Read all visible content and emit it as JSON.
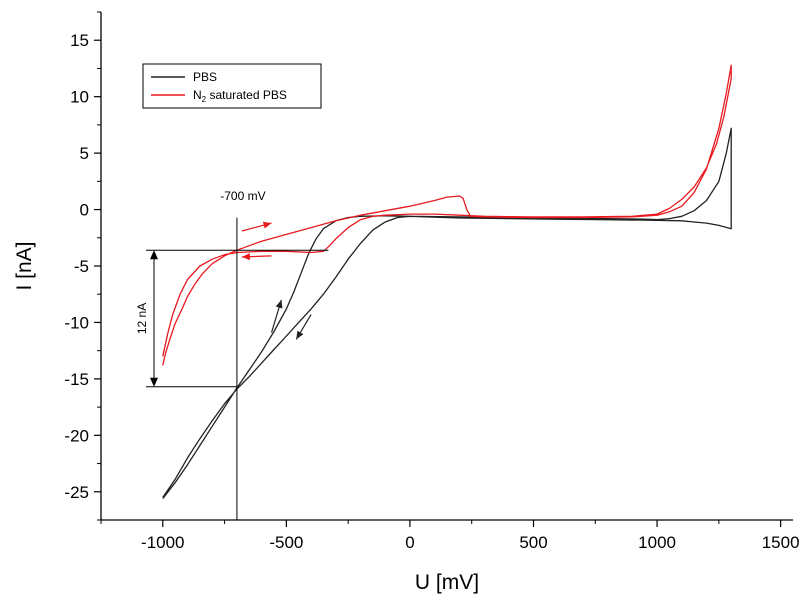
{
  "chart_data": {
    "type": "line",
    "xlabel": "U [mV]",
    "ylabel": "I [nA]",
    "xlim": [
      -1250,
      1550
    ],
    "ylim": [
      -27.5,
      17.5
    ],
    "x_ticks": [
      -1000,
      -500,
      0,
      500,
      1000,
      1500
    ],
    "x_tick_labels": [
      "-1000",
      "-500",
      "0",
      "500",
      "1000",
      "1500"
    ],
    "y_ticks": [
      -25,
      -20,
      -15,
      -10,
      -5,
      0,
      5,
      10,
      15
    ],
    "y_tick_labels": [
      "-25",
      "-20",
      "-15",
      "-10",
      "-5",
      "0",
      "5",
      "10",
      "15"
    ],
    "grid": false,
    "legend": {
      "placement": "top-left",
      "entries": [
        {
          "label": "PBS",
          "color": "#222222"
        },
        {
          "label_main": "N",
          "label_sub": "2",
          "label_rest": " saturated PBS",
          "color": "#e8191f"
        }
      ]
    },
    "series": [
      {
        "name": "PBS",
        "color": "#222222",
        "points": [
          [
            -1000,
            -25.6
          ],
          [
            -950,
            -24.2
          ],
          [
            -900,
            -22.6
          ],
          [
            -850,
            -20.9
          ],
          [
            -800,
            -19.2
          ],
          [
            -750,
            -17.5
          ],
          [
            -700,
            -15.8
          ],
          [
            -650,
            -14.2
          ],
          [
            -600,
            -12.6
          ],
          [
            -550,
            -10.8
          ],
          [
            -500,
            -8.8
          ],
          [
            -470,
            -7.3
          ],
          [
            -440,
            -5.6
          ],
          [
            -410,
            -3.9
          ],
          [
            -380,
            -2.6
          ],
          [
            -350,
            -1.7
          ],
          [
            -300,
            -1.0
          ],
          [
            -250,
            -0.7
          ],
          [
            -200,
            -0.6
          ],
          [
            -100,
            -0.55
          ],
          [
            0,
            -0.6
          ],
          [
            200,
            -0.65
          ],
          [
            400,
            -0.7
          ],
          [
            600,
            -0.75
          ],
          [
            800,
            -0.8
          ],
          [
            950,
            -0.85
          ],
          [
            1000,
            -0.9
          ],
          [
            1050,
            -0.8
          ],
          [
            1100,
            -0.6
          ],
          [
            1150,
            -0.1
          ],
          [
            1200,
            0.8
          ],
          [
            1250,
            2.5
          ],
          [
            1280,
            5.0
          ],
          [
            1300,
            7.2
          ],
          [
            1300,
            -1.7
          ],
          [
            1250,
            -1.4
          ],
          [
            1200,
            -1.2
          ],
          [
            1150,
            -1.1
          ],
          [
            1100,
            -1.0
          ],
          [
            1000,
            -0.95
          ],
          [
            800,
            -0.9
          ],
          [
            600,
            -0.85
          ],
          [
            400,
            -0.8
          ],
          [
            200,
            -0.75
          ],
          [
            0,
            -0.6
          ],
          [
            -50,
            -0.7
          ],
          [
            -100,
            -1.1
          ],
          [
            -150,
            -1.8
          ],
          [
            -200,
            -3.0
          ],
          [
            -250,
            -4.4
          ],
          [
            -300,
            -6.0
          ],
          [
            -350,
            -7.5
          ],
          [
            -400,
            -8.8
          ],
          [
            -450,
            -10.0
          ],
          [
            -500,
            -11.2
          ],
          [
            -550,
            -12.4
          ],
          [
            -600,
            -13.6
          ],
          [
            -650,
            -14.8
          ],
          [
            -700,
            -15.9
          ],
          [
            -750,
            -17.2
          ],
          [
            -800,
            -18.7
          ],
          [
            -850,
            -20.3
          ],
          [
            -900,
            -22.0
          ],
          [
            -950,
            -23.9
          ],
          [
            -1000,
            -25.5
          ]
        ]
      },
      {
        "name": "N₂ saturated PBS",
        "color": "#e8191f",
        "points": [
          [
            -1000,
            -13.8
          ],
          [
            -990,
            -12.8
          ],
          [
            -970,
            -11.4
          ],
          [
            -950,
            -10.1
          ],
          [
            -920,
            -8.7
          ],
          [
            -900,
            -7.7
          ],
          [
            -870,
            -6.6
          ],
          [
            -840,
            -5.7
          ],
          [
            -800,
            -4.8
          ],
          [
            -750,
            -4.1
          ],
          [
            -700,
            -3.6
          ],
          [
            -650,
            -3.2
          ],
          [
            -600,
            -2.8
          ],
          [
            -500,
            -2.2
          ],
          [
            -400,
            -1.6
          ],
          [
            -300,
            -1.0
          ],
          [
            -200,
            -0.5
          ],
          [
            -100,
            -0.1
          ],
          [
            0,
            0.3
          ],
          [
            100,
            0.8
          ],
          [
            150,
            1.1
          ],
          [
            200,
            1.2
          ],
          [
            215,
            1.0
          ],
          [
            230,
            0.0
          ],
          [
            245,
            -0.6
          ],
          [
            300,
            -0.65
          ],
          [
            500,
            -0.7
          ],
          [
            700,
            -0.7
          ],
          [
            900,
            -0.65
          ],
          [
            1000,
            -0.5
          ],
          [
            1050,
            -0.2
          ],
          [
            1100,
            0.3
          ],
          [
            1150,
            1.5
          ],
          [
            1200,
            3.6
          ],
          [
            1250,
            7.2
          ],
          [
            1280,
            10.3
          ],
          [
            1300,
            12.8
          ],
          [
            1300,
            11.6
          ],
          [
            1270,
            8.2
          ],
          [
            1240,
            5.8
          ],
          [
            1200,
            3.7
          ],
          [
            1150,
            2.0
          ],
          [
            1100,
            0.9
          ],
          [
            1050,
            0.1
          ],
          [
            1000,
            -0.4
          ],
          [
            900,
            -0.6
          ],
          [
            700,
            -0.65
          ],
          [
            500,
            -0.65
          ],
          [
            300,
            -0.6
          ],
          [
            200,
            -0.5
          ],
          [
            100,
            -0.4
          ],
          [
            0,
            -0.4
          ],
          [
            -100,
            -0.5
          ],
          [
            -150,
            -0.6
          ],
          [
            -200,
            -0.9
          ],
          [
            -250,
            -1.6
          ],
          [
            -300,
            -2.6
          ],
          [
            -330,
            -3.3
          ],
          [
            -350,
            -3.7
          ],
          [
            -400,
            -3.8
          ],
          [
            -500,
            -3.7
          ],
          [
            -600,
            -3.7
          ],
          [
            -700,
            -3.8
          ],
          [
            -750,
            -4.0
          ],
          [
            -800,
            -4.4
          ],
          [
            -850,
            -5.0
          ],
          [
            -900,
            -6.2
          ],
          [
            -930,
            -7.5
          ],
          [
            -960,
            -9.3
          ],
          [
            -980,
            -11.0
          ],
          [
            -1000,
            -13.0
          ]
        ]
      }
    ],
    "annotations": {
      "vertical_line_x": -700,
      "vertical_line_label": "-700 mV",
      "delta_label": "12 nA",
      "delta_upper_y": -3.6,
      "delta_lower_y": -15.7,
      "delta_x": -1000
    }
  }
}
